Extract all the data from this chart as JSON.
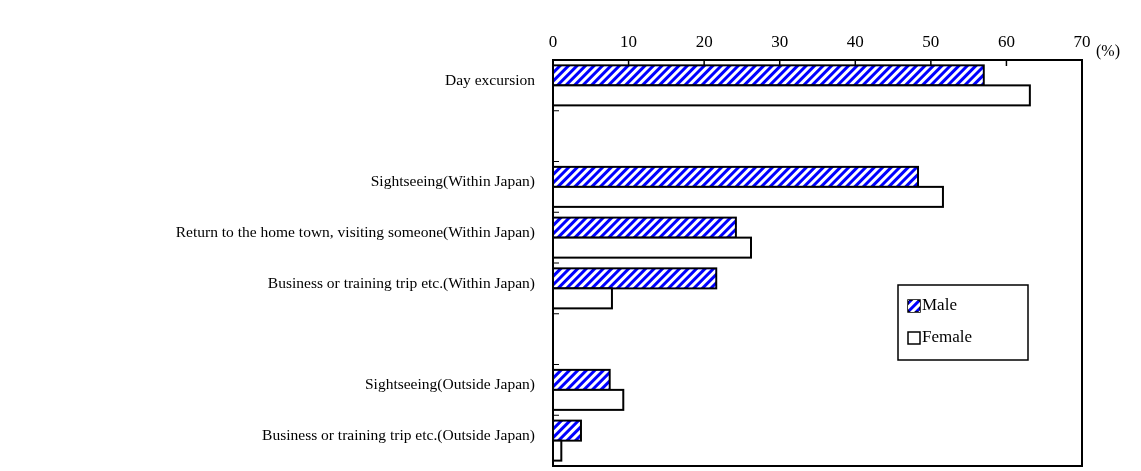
{
  "chart_data": {
    "type": "bar",
    "orientation": "horizontal",
    "xlabel": "(%)",
    "categories": [
      "Day excursion",
      null,
      "Sightseeing(Within Japan)",
      "Return to the home town, visiting someone(Within Japan)",
      "Business or training trip etc.(Within Japan)",
      null,
      "Sightseeing(Outside Japan)",
      "Business or training trip etc.(Outside Japan)"
    ],
    "series": [
      {
        "name": "Male",
        "color": "#0000ff",
        "values": [
          57,
          null,
          48.3,
          24.2,
          21.6,
          null,
          7.5,
          3.7
        ]
      },
      {
        "name": "Female",
        "color": "#ffffff",
        "values": [
          63.1,
          null,
          51.6,
          26.2,
          7.8,
          null,
          9.3,
          1.1
        ]
      }
    ],
    "xlim": [
      0,
      70
    ],
    "xticks": [
      0,
      10,
      20,
      30,
      40,
      50,
      60,
      70
    ],
    "legend": "bottom right",
    "grid": false
  }
}
